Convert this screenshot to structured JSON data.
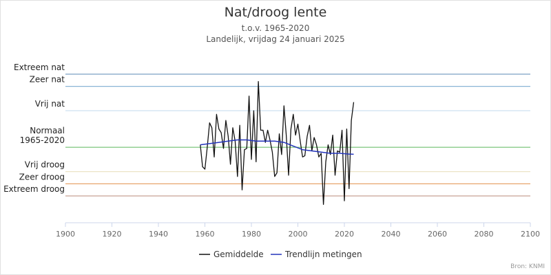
{
  "header": {
    "title": "Nat/droog lente",
    "subtitle_line1": "t.o.v. 1965-2020",
    "subtitle_line2": "Landelijk, vrijdag 24 januari 2025"
  },
  "credit": "Bron: KNMI",
  "colors": {
    "extreem_nat": "#7a9fc4",
    "zeer_nat": "#89b4d6",
    "vrij_nat": "#cde0f0",
    "normaal": "#6fbf6f",
    "vrij_droog": "#ece3c6",
    "zeer_droog": "#e69a5a",
    "extreem_droog": "#c7a094",
    "series_gemiddelde": "#111111",
    "series_trend": "#2233bb"
  },
  "chart_data": {
    "type": "line",
    "title": "Nat/droog lente",
    "subtitle": [
      "t.o.v. 1965-2020",
      "Landelijk, vrijdag 24 januari 2025"
    ],
    "xlabel": "",
    "ylabel": "",
    "xlim": [
      1900,
      2100
    ],
    "x_ticks": [
      "1900",
      "1920",
      "1940",
      "1960",
      "1980",
      "2000",
      "2020",
      "2040",
      "2060",
      "2080",
      "2100"
    ],
    "category_levels": [
      {
        "label": "Extreem nat",
        "value": 3
      },
      {
        "label": "Zeer nat",
        "value": 2.5
      },
      {
        "label": "Vrij nat",
        "value": 1.5
      },
      {
        "label": "Normaal\n1965-2020",
        "value": 0
      },
      {
        "label": "Vrij droog",
        "value": -1
      },
      {
        "label": "Zeer droog",
        "value": -1.5
      },
      {
        "label": "Extreem droog",
        "value": -2
      }
    ],
    "ylim": [
      -3.1,
      3.9
    ],
    "legend_position": "bottom",
    "series": [
      {
        "name": "Gemiddelde",
        "x": [
          1958,
          1959,
          1960,
          1961,
          1962,
          1963,
          1964,
          1965,
          1966,
          1967,
          1968,
          1969,
          1970,
          1971,
          1972,
          1973,
          1974,
          1975,
          1976,
          1977,
          1978,
          1979,
          1980,
          1981,
          1982,
          1983,
          1984,
          1985,
          1986,
          1987,
          1988,
          1989,
          1990,
          1991,
          1992,
          1993,
          1994,
          1995,
          1996,
          1997,
          1998,
          1999,
          2000,
          2001,
          2002,
          2003,
          2004,
          2005,
          2006,
          2007,
          2008,
          2009,
          2010,
          2011,
          2012,
          2013,
          2014,
          2015,
          2016,
          2017,
          2018,
          2019,
          2020,
          2021,
          2022,
          2023,
          2024
        ],
        "y": [
          0.1,
          -0.8,
          -0.9,
          0,
          1,
          0.8,
          -0.4,
          1.35,
          0.75,
          0.6,
          -0.05,
          1.1,
          0.45,
          -0.7,
          0.8,
          0.25,
          -1.2,
          0.9,
          -1.75,
          -0.1,
          -0.05,
          2.1,
          -0.5,
          1.5,
          -0.6,
          2.7,
          0.7,
          0.7,
          0.2,
          0.7,
          0.3,
          -0.2,
          -1.2,
          -1.05,
          0.55,
          -0.3,
          1.7,
          0.5,
          -1.15,
          0.75,
          1.35,
          0.5,
          0.95,
          0.25,
          -0.4,
          -0.35,
          0.45,
          0.9,
          -0.15,
          0.4,
          0.1,
          -0.4,
          -0.25,
          -2.35,
          -0.6,
          0.1,
          -0.3,
          0.5,
          -1.15,
          -0.15,
          -0.2,
          0.7,
          -2.2,
          0.75,
          -1.7,
          1.1,
          1.85
        ]
      },
      {
        "name": "Trendlijn metingen",
        "x": [
          1958,
          1962,
          1966,
          1970,
          1974,
          1978,
          1982,
          1986,
          1990,
          1994,
          1998,
          2002,
          2006,
          2010,
          2014,
          2018,
          2022,
          2024
        ],
        "y": [
          0.1,
          0.15,
          0.2,
          0.25,
          0.3,
          0.3,
          0.25,
          0.25,
          0.25,
          0.2,
          0.05,
          -0.1,
          -0.15,
          -0.2,
          -0.25,
          -0.25,
          -0.28,
          -0.29
        ]
      }
    ]
  }
}
